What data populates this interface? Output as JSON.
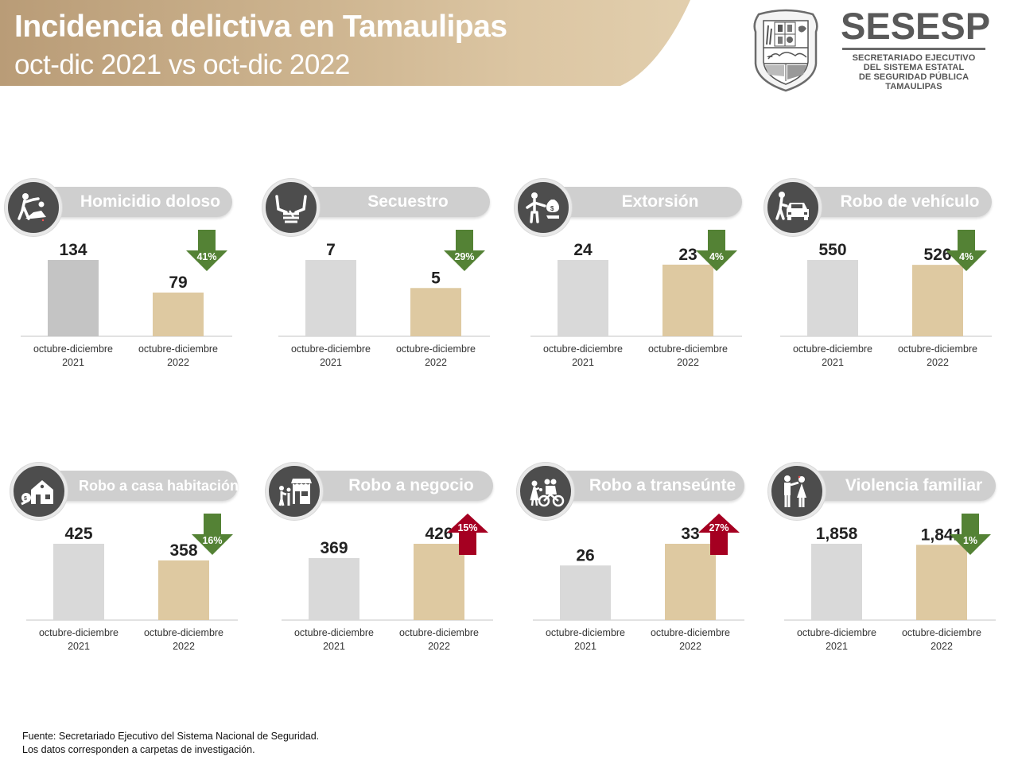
{
  "header": {
    "title": "Incidencia delictiva en Tamaulipas",
    "subtitle": "oct-dic 2021 vs oct-dic 2022"
  },
  "logo": {
    "crest_icon": "tamaulipas-coat-of-arms",
    "name": "SESESP",
    "sub_lines": [
      "SECRETARIADO EJECUTIVO",
      "DEL SISTEMA ESTATAL",
      "DE SEGURIDAD PÚBLICA",
      "TAMAULIPAS"
    ]
  },
  "colors": {
    "bar_2021": "#d9d9d9",
    "bar_2021_highlight": "#c4c4c4",
    "bar_2022": "#dec9a1",
    "decrease": "#548235",
    "increase": "#a50021",
    "pill": "#cfcfcf",
    "icon_bg": "#4d4d4d"
  },
  "chart_data": [
    {
      "type": "bar",
      "title": "Homicidio doloso",
      "icon": "homicide-icon",
      "categories": [
        "octubre-diciembre 2021",
        "octubre-diciembre 2022"
      ],
      "values": [
        134,
        79
      ],
      "value_labels": [
        "134",
        "79"
      ],
      "change": {
        "direction": "down",
        "label": "41%"
      }
    },
    {
      "type": "bar",
      "title": "Secuestro",
      "icon": "kidnapping-icon",
      "categories": [
        "octubre-diciembre 2021",
        "octubre-diciembre 2022"
      ],
      "values": [
        7,
        5
      ],
      "value_labels": [
        "7",
        "5"
      ],
      "change": {
        "direction": "down",
        "label": "29%"
      }
    },
    {
      "type": "bar",
      "title": "Extorsión",
      "icon": "extortion-icon",
      "categories": [
        "octubre-diciembre 2021",
        "octubre-diciembre 2022"
      ],
      "values": [
        24,
        23
      ],
      "value_labels": [
        "24",
        "23"
      ],
      "change": {
        "direction": "down",
        "label": "4%"
      }
    },
    {
      "type": "bar",
      "title": "Robo de vehículo",
      "icon": "car-theft-icon",
      "categories": [
        "octubre-diciembre 2021",
        "octubre-diciembre 2022"
      ],
      "values": [
        550,
        526
      ],
      "value_labels": [
        "550",
        "526"
      ],
      "change": {
        "direction": "down",
        "label": "4%"
      }
    },
    {
      "type": "bar",
      "title": "Robo a casa habitación",
      "icon": "house-burglary-icon",
      "categories": [
        "octubre-diciembre 2021",
        "octubre-diciembre 2022"
      ],
      "values": [
        425,
        358
      ],
      "value_labels": [
        "425",
        "358"
      ],
      "change": {
        "direction": "down",
        "label": "16%"
      }
    },
    {
      "type": "bar",
      "title": "Robo a negocio",
      "icon": "business-robbery-icon",
      "categories": [
        "octubre-diciembre 2021",
        "octubre-diciembre 2022"
      ],
      "values": [
        369,
        426
      ],
      "value_labels": [
        "369",
        "426"
      ],
      "change": {
        "direction": "up",
        "label": "15%"
      }
    },
    {
      "type": "bar",
      "title": "Robo a transeúnte",
      "icon": "street-robbery-icon",
      "categories": [
        "octubre-diciembre 2021",
        "octubre-diciembre 2022"
      ],
      "values": [
        26,
        33
      ],
      "value_labels": [
        "26",
        "33"
      ],
      "change": {
        "direction": "up",
        "label": "27%"
      }
    },
    {
      "type": "bar",
      "title": "Violencia familiar",
      "icon": "domestic-violence-icon",
      "categories": [
        "octubre-diciembre 2021",
        "octubre-diciembre 2022"
      ],
      "values": [
        1858,
        1841
      ],
      "value_labels": [
        "1,858",
        "1,841"
      ],
      "change": {
        "direction": "down",
        "label": "1%"
      }
    }
  ],
  "footer": {
    "source": "Fuente: Secretariado Ejecutivo del Sistema Nacional de Seguridad.",
    "note": "Los datos corresponden a carpetas de investigación."
  }
}
